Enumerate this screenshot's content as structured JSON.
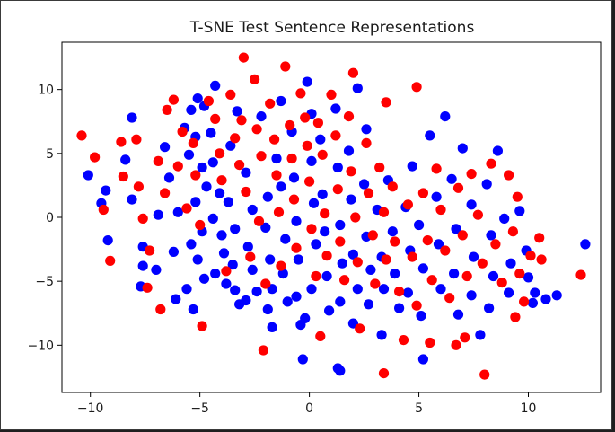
{
  "chart_data": {
    "type": "scatter",
    "title": "T-SNE Test Sentence Representations",
    "xlabel": "",
    "ylabel": "",
    "xlim": [
      -11.3,
      13.3
    ],
    "ylim": [
      -13.7,
      13.7
    ],
    "xticks": [
      -10,
      -5,
      0,
      5,
      10
    ],
    "xtick_labels": [
      "−10",
      "−5",
      "0",
      "5",
      "10"
    ],
    "yticks": [
      10,
      5,
      0,
      -5,
      -10
    ],
    "ytick_labels": [
      "10",
      "5",
      "0",
      "−5",
      "−10"
    ],
    "grid": false,
    "legend": "none",
    "colors": {
      "blue": "#0000ff",
      "red": "#ff0000"
    },
    "series": [
      {
        "color": "blue",
        "points": [
          [
            -10.1,
            3.3
          ],
          [
            -9.3,
            2.1
          ],
          [
            -9.5,
            1.1
          ],
          [
            -9.2,
            -1.8
          ],
          [
            -8.1,
            7.8
          ],
          [
            -8.4,
            4.5
          ],
          [
            -8.1,
            1.4
          ],
          [
            -7.6,
            -2.3
          ],
          [
            -7.6,
            -3.8
          ],
          [
            -7.7,
            -5.4
          ],
          [
            -7.0,
            -4.1
          ],
          [
            -6.9,
            0.2
          ],
          [
            -6.6,
            5.5
          ],
          [
            -6.4,
            3.1
          ],
          [
            -6.0,
            0.4
          ],
          [
            -6.2,
            -2.7
          ],
          [
            -6.1,
            -6.4
          ],
          [
            -5.7,
            7.0
          ],
          [
            -5.4,
            8.4
          ],
          [
            -5.2,
            6.3
          ],
          [
            -5.1,
            9.3
          ],
          [
            -5.5,
            4.9
          ],
          [
            -4.9,
            3.9
          ],
          [
            -4.7,
            2.4
          ],
          [
            -5.2,
            1.2
          ],
          [
            -4.9,
            -1.1
          ],
          [
            -5.4,
            -2.1
          ],
          [
            -5.1,
            -3.3
          ],
          [
            -4.8,
            -4.8
          ],
          [
            -5.6,
            -5.6
          ],
          [
            -5.3,
            -7.2
          ],
          [
            -4.8,
            8.7
          ],
          [
            -4.5,
            6.6
          ],
          [
            -4.4,
            4.3
          ],
          [
            -4.1,
            1.9
          ],
          [
            -4.4,
            -0.1
          ],
          [
            -4.0,
            -1.4
          ],
          [
            -3.9,
            -2.8
          ],
          [
            -4.3,
            -4.4
          ],
          [
            -3.8,
            -5.2
          ],
          [
            -4.3,
            10.3
          ],
          [
            -3.6,
            5.6
          ],
          [
            -3.7,
            1.2
          ],
          [
            -3.4,
            -0.9
          ],
          [
            -3.5,
            -3.7
          ],
          [
            -3.4,
            -5.7
          ],
          [
            -3.2,
            -6.8
          ],
          [
            -3.3,
            8.3
          ],
          [
            -2.9,
            3.5
          ],
          [
            -2.6,
            0.6
          ],
          [
            -2.8,
            -2.3
          ],
          [
            -2.6,
            -4.1
          ],
          [
            -2.4,
            -5.8
          ],
          [
            -2.9,
            -6.5
          ],
          [
            -2.2,
            7.9
          ],
          [
            -1.9,
            1.6
          ],
          [
            -2.0,
            -0.8
          ],
          [
            -1.8,
            -3.3
          ],
          [
            -1.7,
            -5.6
          ],
          [
            -1.9,
            -7.2
          ],
          [
            -1.7,
            -8.6
          ],
          [
            -1.3,
            9.1
          ],
          [
            -1.5,
            4.6
          ],
          [
            -1.3,
            2.4
          ],
          [
            -1.1,
            -1.7
          ],
          [
            -1.2,
            -4.4
          ],
          [
            -1.0,
            -6.6
          ],
          [
            -0.8,
            6.7
          ],
          [
            -0.7,
            3.1
          ],
          [
            -0.6,
            -0.3
          ],
          [
            -0.5,
            -3.3
          ],
          [
            -0.6,
            -6.2
          ],
          [
            -0.4,
            -8.4
          ],
          [
            -0.1,
            10.6
          ],
          [
            0.1,
            8.1
          ],
          [
            0.1,
            4.4
          ],
          [
            0.2,
            1.1
          ],
          [
            0.3,
            -2.1
          ],
          [
            0.1,
            -5.6
          ],
          [
            -0.2,
            -7.9
          ],
          [
            -0.3,
            -11.1
          ],
          [
            0.5,
            6.1
          ],
          [
            0.6,
            1.8
          ],
          [
            0.7,
            -1.1
          ],
          [
            0.8,
            -4.6
          ],
          [
            0.9,
            -7.3
          ],
          [
            1.2,
            8.5
          ],
          [
            1.3,
            3.9
          ],
          [
            1.4,
            -0.6
          ],
          [
            1.5,
            -3.6
          ],
          [
            1.4,
            -6.6
          ],
          [
            1.3,
            -11.8
          ],
          [
            1.4,
            -12.0
          ],
          [
            1.8,
            5.2
          ],
          [
            1.9,
            1.4
          ],
          [
            2.0,
            -2.9
          ],
          [
            2.2,
            -5.6
          ],
          [
            2.0,
            -8.3
          ],
          [
            2.2,
            10.1
          ],
          [
            2.6,
            6.9
          ],
          [
            2.5,
            2.6
          ],
          [
            2.6,
            -1.5
          ],
          [
            2.8,
            -4.1
          ],
          [
            2.7,
            -6.8
          ],
          [
            3.1,
            0.6
          ],
          [
            3.3,
            -3.1
          ],
          [
            3.4,
            -5.6
          ],
          [
            3.3,
            -9.2
          ],
          [
            3.6,
            2.9
          ],
          [
            3.8,
            -1.1
          ],
          [
            3.9,
            -4.4
          ],
          [
            4.1,
            -7.1
          ],
          [
            4.4,
            0.8
          ],
          [
            4.6,
            -2.6
          ],
          [
            4.5,
            -5.9
          ],
          [
            4.7,
            4.0
          ],
          [
            5.0,
            -0.6
          ],
          [
            5.2,
            -4.0
          ],
          [
            5.1,
            -7.7
          ],
          [
            5.2,
            -11.1
          ],
          [
            5.5,
            6.4
          ],
          [
            5.8,
            1.6
          ],
          [
            5.9,
            -2.1
          ],
          [
            6.0,
            -5.6
          ],
          [
            6.2,
            7.9
          ],
          [
            6.5,
            3.0
          ],
          [
            6.7,
            -0.9
          ],
          [
            6.6,
            -4.4
          ],
          [
            6.8,
            -7.6
          ],
          [
            7.0,
            5.4
          ],
          [
            7.4,
            1.0
          ],
          [
            7.5,
            -3.1
          ],
          [
            7.4,
            -6.1
          ],
          [
            7.8,
            -9.2
          ],
          [
            8.1,
            2.6
          ],
          [
            8.3,
            -1.4
          ],
          [
            8.4,
            -4.6
          ],
          [
            8.2,
            -7.1
          ],
          [
            8.6,
            5.2
          ],
          [
            8.9,
            -0.1
          ],
          [
            9.2,
            -3.6
          ],
          [
            9.1,
            -5.9
          ],
          [
            9.6,
            0.5
          ],
          [
            9.9,
            -2.6
          ],
          [
            10.0,
            -4.7
          ],
          [
            10.2,
            -6.7
          ],
          [
            10.8,
            -6.4
          ],
          [
            11.3,
            -6.1
          ],
          [
            12.6,
            -2.1
          ],
          [
            10.3,
            -5.9
          ]
        ]
      },
      {
        "color": "red",
        "points": [
          [
            -10.4,
            6.4
          ],
          [
            -9.8,
            4.7
          ],
          [
            -9.4,
            0.6
          ],
          [
            -9.1,
            -3.4
          ],
          [
            -8.6,
            5.9
          ],
          [
            -8.5,
            3.2
          ],
          [
            -7.9,
            6.1
          ],
          [
            -7.8,
            2.4
          ],
          [
            -7.6,
            -0.1
          ],
          [
            -7.3,
            -2.6
          ],
          [
            -7.4,
            -5.5
          ],
          [
            -6.9,
            4.4
          ],
          [
            -6.6,
            1.9
          ],
          [
            -6.8,
            -7.2
          ],
          [
            -6.5,
            8.4
          ],
          [
            -6.2,
            9.2
          ],
          [
            -6.0,
            4.0
          ],
          [
            -5.8,
            6.7
          ],
          [
            -5.6,
            0.7
          ],
          [
            -5.3,
            5.8
          ],
          [
            -5.2,
            3.3
          ],
          [
            -5.0,
            -0.6
          ],
          [
            -4.9,
            -8.5
          ],
          [
            -4.6,
            9.1
          ],
          [
            -4.3,
            7.7
          ],
          [
            -4.1,
            5.0
          ],
          [
            -4.0,
            2.9
          ],
          [
            -3.8,
            -4.2
          ],
          [
            -3.6,
            9.6
          ],
          [
            -3.4,
            6.2
          ],
          [
            -3.2,
            4.1
          ],
          [
            -3.0,
            12.5
          ],
          [
            -3.1,
            7.6
          ],
          [
            -2.9,
            2.0
          ],
          [
            -2.7,
            -3.1
          ],
          [
            -2.5,
            10.8
          ],
          [
            -2.4,
            6.9
          ],
          [
            -2.2,
            4.8
          ],
          [
            -2.3,
            -0.3
          ],
          [
            -2.0,
            -5.2
          ],
          [
            -2.1,
            -10.4
          ],
          [
            -1.8,
            8.9
          ],
          [
            -1.6,
            6.1
          ],
          [
            -1.5,
            3.3
          ],
          [
            -1.4,
            0.4
          ],
          [
            -1.3,
            -3.8
          ],
          [
            -1.1,
            11.8
          ],
          [
            -0.9,
            7.2
          ],
          [
            -0.8,
            4.6
          ],
          [
            -0.7,
            1.4
          ],
          [
            -0.6,
            -2.4
          ],
          [
            -0.4,
            9.7
          ],
          [
            -0.2,
            7.8
          ],
          [
            -0.1,
            5.6
          ],
          [
            0.0,
            2.8
          ],
          [
            0.1,
            -0.9
          ],
          [
            0.3,
            -4.6
          ],
          [
            0.4,
            7.4
          ],
          [
            0.6,
            4.9
          ],
          [
            0.7,
            0.3
          ],
          [
            0.8,
            -3.0
          ],
          [
            0.5,
            -9.3
          ],
          [
            1.0,
            9.6
          ],
          [
            1.2,
            6.4
          ],
          [
            1.3,
            2.2
          ],
          [
            1.4,
            -1.9
          ],
          [
            1.6,
            -4.9
          ],
          [
            1.8,
            7.9
          ],
          [
            1.9,
            3.6
          ],
          [
            2.1,
            0.0
          ],
          [
            2.2,
            -3.5
          ],
          [
            2.3,
            -8.7
          ],
          [
            2.6,
            5.8
          ],
          [
            2.7,
            1.9
          ],
          [
            2.9,
            -1.4
          ],
          [
            3.0,
            -5.2
          ],
          [
            3.2,
            3.9
          ],
          [
            3.4,
            0.4
          ],
          [
            3.5,
            -3.3
          ],
          [
            3.4,
            -12.2
          ],
          [
            3.5,
            9.0
          ],
          [
            3.8,
            2.4
          ],
          [
            3.9,
            -1.9
          ],
          [
            4.1,
            -5.8
          ],
          [
            4.3,
            -9.6
          ],
          [
            4.5,
            1.0
          ],
          [
            4.7,
            -3.1
          ],
          [
            4.9,
            -6.9
          ],
          [
            5.2,
            1.9
          ],
          [
            5.4,
            -1.8
          ],
          [
            5.6,
            -4.9
          ],
          [
            5.5,
            -9.8
          ],
          [
            5.8,
            3.8
          ],
          [
            6.0,
            0.6
          ],
          [
            6.2,
            -2.6
          ],
          [
            6.4,
            -6.3
          ],
          [
            6.8,
            2.3
          ],
          [
            7.0,
            -1.4
          ],
          [
            7.2,
            -4.6
          ],
          [
            7.1,
            -9.4
          ],
          [
            7.4,
            3.4
          ],
          [
            7.7,
            0.2
          ],
          [
            7.9,
            -3.6
          ],
          [
            8.0,
            -12.3
          ],
          [
            8.3,
            4.2
          ],
          [
            8.5,
            -2.1
          ],
          [
            8.8,
            -5.1
          ],
          [
            9.1,
            3.3
          ],
          [
            9.3,
            -1.1
          ],
          [
            9.6,
            -4.4
          ],
          [
            9.8,
            -6.6
          ],
          [
            9.5,
            1.6
          ],
          [
            10.1,
            -3.0
          ],
          [
            10.5,
            -1.6
          ],
          [
            10.6,
            -3.3
          ],
          [
            12.4,
            -4.5
          ],
          [
            9.4,
            -7.8
          ],
          [
            6.7,
            -10.0
          ],
          [
            4.9,
            10.2
          ],
          [
            2.0,
            11.3
          ]
        ]
      }
    ]
  }
}
